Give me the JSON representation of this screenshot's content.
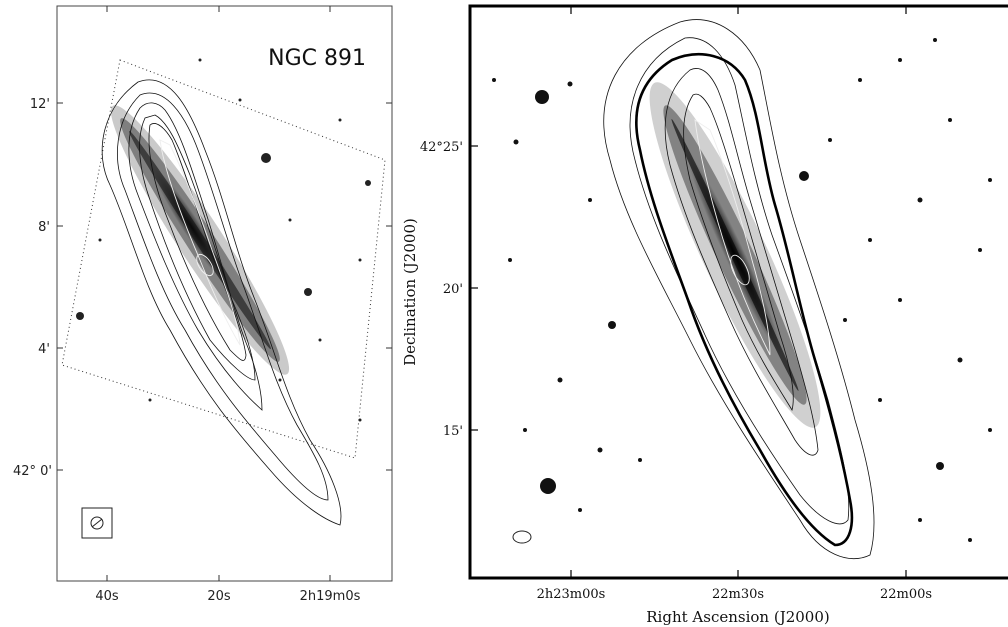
{
  "left_panel": {
    "title": "NGC 891",
    "y_ticks": [
      "12'",
      "8'",
      "4'",
      "42° 0'"
    ],
    "x_ticks": [
      "40s",
      "20s",
      "2h19m0s"
    ]
  },
  "right_panel": {
    "y_label": "Declination (J2000)",
    "x_label": "Right Ascension (J2000)",
    "y_ticks": [
      "42°25'",
      "20'",
      "15'"
    ],
    "x_ticks": [
      "2h23m00s",
      "22m30s",
      "22m00s"
    ]
  }
}
